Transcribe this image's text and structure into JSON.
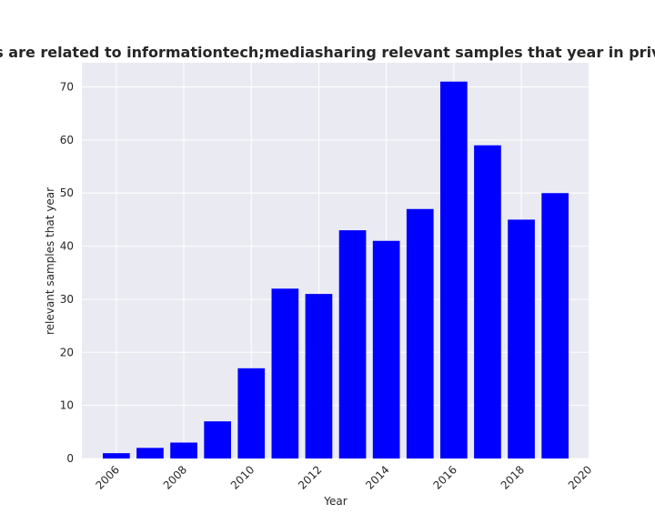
{
  "chart_data": {
    "type": "bar",
    "title": "Categories are related to informationtech;mediasharing relevant samples that year in privacy policies",
    "xlabel": "Year",
    "ylabel": "relevant samples that year",
    "x": [
      2006,
      2007,
      2008,
      2009,
      2010,
      2011,
      2012,
      2013,
      2014,
      2015,
      2016,
      2017,
      2018,
      2019
    ],
    "values": [
      1,
      2,
      3,
      7,
      17,
      32,
      31,
      43,
      41,
      47,
      71,
      59,
      45,
      50
    ],
    "x_ticks": [
      "2006",
      "2008",
      "2010",
      "2012",
      "2014",
      "2016",
      "2018",
      "2020"
    ],
    "y_ticks": [
      "0",
      "10",
      "20",
      "30",
      "40",
      "50",
      "60",
      "70"
    ],
    "xlim": [
      2004.98,
      2020.02
    ],
    "ylim": [
      0,
      74.55
    ],
    "bar_color": "#0000ff",
    "background_color": "#eaeaf2",
    "grid": true
  }
}
